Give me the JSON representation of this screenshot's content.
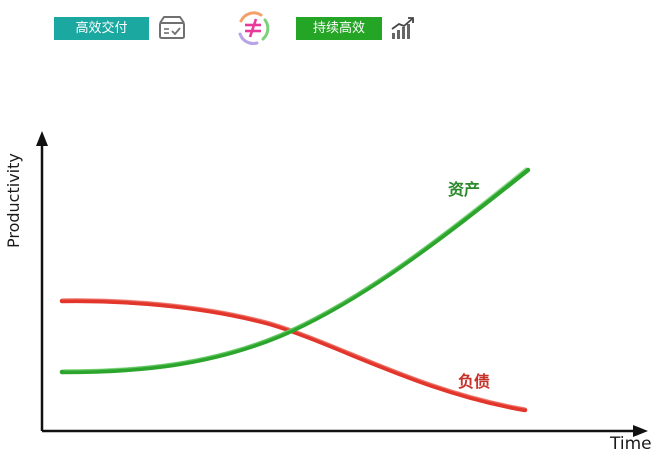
{
  "header": {
    "badge_delivery": "高效交付",
    "badge_sustain": "持续高效",
    "icons": {
      "delivery": "checklist-box-icon",
      "relation": "not-equal-cycle-icon",
      "sustain": "growth-chart-icon"
    }
  },
  "diagram": {
    "y_axis_label": "Productivity",
    "x_axis_label": "Time",
    "curves": {
      "asset": {
        "label": "资产",
        "color": "#2ca52c"
      },
      "liability": {
        "label": "负债",
        "color": "#e2352b"
      }
    }
  },
  "colors": {
    "badge_delivery": "#1aa8a0",
    "badge_sustain": "#25a525",
    "neq_symbol": "#e83a9a",
    "axis": "#111111"
  }
}
